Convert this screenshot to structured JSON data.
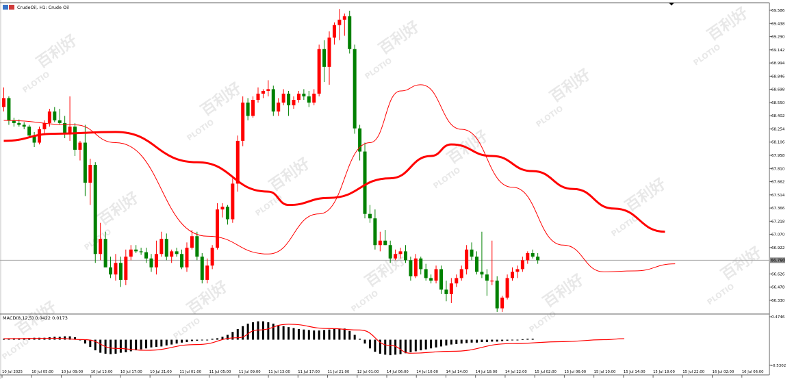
{
  "header": {
    "title": "CrudeOil, H1: Crude Oil"
  },
  "watermark": {
    "brand": "PLOTIO",
    "cjk": "百利好"
  },
  "colors": {
    "bull": "#ff0000",
    "bear": "#008000",
    "ma_fast": "#ff0000",
    "ma_slow": "#ff0000",
    "price_line": "#a0a0a0",
    "macd_signal": "#ff0000",
    "macd_hist": "#000000"
  },
  "chart_data": [
    {
      "type": "candlestick",
      "title": "CrudeOil, H1: Crude Oil",
      "ylim": [
        66.18,
        69.61
      ],
      "y_ticks": [
        "69.586",
        "69.438",
        "69.290",
        "69.142",
        "68.994",
        "68.846",
        "68.698",
        "68.550",
        "68.402",
        "68.254",
        "68.106",
        "67.958",
        "67.810",
        "67.662",
        "67.514",
        "67.366",
        "67.218",
        "67.070",
        "66.922",
        "66.626",
        "66.478",
        "66.330"
      ],
      "current_price": "66.780",
      "x_ticks": [
        "10 Jul 2025",
        "10 Jul 05:00",
        "10 Jul 09:00",
        "10 Jul 13:00",
        "10 Jul 17:00",
        "10 Jul 21:00",
        "11 Jul 01:00",
        "11 Jul 05:00",
        "11 Jul 09:00",
        "11 Jul 13:00",
        "11 Jul 17:00",
        "11 Jul 21:00",
        "12 Jul 01:00",
        "14 Jul 06:00",
        "14 Jul 10:00",
        "14 Jul 14:00",
        "14 Jul 18:00",
        "14 Jul 22:00",
        "15 Jul 02:00",
        "15 Jul 06:00",
        "15 Jul 10:00",
        "15 Jul 14:00",
        "15 Jul 18:00",
        "15 Jul 22:00",
        "16 Jul 02:00",
        "16 Jul 06:00"
      ],
      "candles": [
        [
          68.5,
          68.72,
          68.45,
          68.6
        ],
        [
          68.6,
          68.62,
          68.3,
          68.35
        ],
        [
          68.35,
          68.38,
          68.28,
          68.32
        ],
        [
          68.32,
          68.36,
          68.28,
          68.3
        ],
        [
          68.3,
          68.33,
          68.25,
          68.28
        ],
        [
          68.28,
          68.3,
          68.15,
          68.18
        ],
        [
          68.18,
          68.22,
          68.05,
          68.1
        ],
        [
          68.1,
          68.28,
          68.08,
          68.25
        ],
        [
          68.25,
          68.35,
          68.2,
          68.32
        ],
        [
          68.32,
          68.48,
          68.28,
          68.45
        ],
        [
          68.45,
          68.5,
          68.33,
          68.35
        ],
        [
          68.35,
          68.48,
          68.3,
          68.32
        ],
        [
          68.32,
          68.4,
          68.15,
          68.2
        ],
        [
          68.2,
          68.62,
          68.12,
          68.28
        ],
        [
          68.28,
          68.32,
          67.95,
          68.02
        ],
        [
          68.02,
          68.12,
          67.9,
          68.1
        ],
        [
          68.1,
          68.3,
          67.5,
          67.65
        ],
        [
          67.65,
          67.92,
          67.4,
          67.85
        ],
        [
          67.85,
          67.88,
          66.75,
          66.85
        ],
        [
          66.85,
          67.2,
          66.78,
          67.02
        ],
        [
          67.02,
          67.1,
          66.72,
          66.7
        ],
        [
          66.7,
          66.82,
          66.58,
          66.62
        ],
        [
          66.62,
          66.85,
          66.55,
          66.75
        ],
        [
          66.75,
          66.82,
          66.48,
          66.56
        ],
        [
          66.56,
          66.9,
          66.5,
          66.82
        ],
        [
          66.82,
          66.95,
          66.78,
          66.9
        ],
        [
          66.9,
          66.95,
          66.86,
          66.88
        ],
        [
          66.88,
          66.92,
          66.84,
          66.87
        ],
        [
          66.87,
          66.92,
          66.75,
          66.8
        ],
        [
          66.8,
          66.85,
          66.65,
          66.7
        ],
        [
          66.7,
          67.0,
          66.62,
          66.85
        ],
        [
          66.85,
          67.1,
          66.82,
          67.02
        ],
        [
          67.02,
          67.08,
          66.78,
          66.82
        ],
        [
          66.82,
          66.9,
          66.75,
          66.88
        ],
        [
          66.88,
          66.92,
          66.82,
          66.85
        ],
        [
          66.85,
          66.9,
          66.68,
          66.7
        ],
        [
          66.7,
          66.98,
          66.65,
          66.92
        ],
        [
          66.92,
          67.12,
          66.9,
          67.05
        ],
        [
          67.05,
          67.1,
          66.78,
          66.82
        ],
        [
          66.82,
          66.86,
          66.52,
          66.56
        ],
        [
          66.56,
          66.8,
          66.52,
          66.72
        ],
        [
          66.72,
          66.95,
          66.68,
          66.92
        ],
        [
          66.92,
          67.42,
          66.9,
          67.35
        ],
        [
          67.35,
          67.42,
          67.26,
          67.38
        ],
        [
          67.38,
          67.4,
          67.18,
          67.24
        ],
        [
          67.24,
          67.7,
          67.2,
          67.64
        ],
        [
          67.64,
          68.18,
          67.55,
          68.12
        ],
        [
          68.12,
          68.62,
          68.06,
          68.55
        ],
        [
          68.55,
          68.6,
          68.35,
          68.4
        ],
        [
          68.4,
          68.62,
          68.38,
          68.58
        ],
        [
          68.58,
          68.72,
          68.55,
          68.65
        ],
        [
          68.65,
          68.7,
          68.6,
          68.68
        ],
        [
          68.68,
          68.8,
          68.62,
          68.7
        ],
        [
          68.7,
          68.74,
          68.4,
          68.45
        ],
        [
          68.45,
          68.6,
          68.4,
          68.55
        ],
        [
          68.55,
          68.7,
          68.52,
          68.65
        ],
        [
          68.65,
          68.68,
          68.4,
          68.52
        ],
        [
          68.52,
          68.62,
          68.48,
          68.58
        ],
        [
          68.58,
          68.68,
          68.55,
          68.65
        ],
        [
          68.65,
          68.7,
          68.58,
          68.62
        ],
        [
          68.62,
          68.68,
          68.5,
          68.55
        ],
        [
          68.55,
          68.7,
          68.52,
          68.65
        ],
        [
          68.65,
          69.2,
          68.62,
          69.15
        ],
        [
          69.15,
          69.25,
          68.78,
          68.95
        ],
        [
          68.95,
          69.35,
          68.75,
          69.28
        ],
        [
          69.28,
          69.45,
          69.2,
          69.42
        ],
        [
          69.42,
          69.6,
          69.25,
          69.48
        ],
        [
          69.48,
          69.55,
          69.3,
          69.52
        ],
        [
          69.52,
          69.58,
          69.1,
          69.15
        ],
        [
          69.15,
          69.2,
          68.2,
          68.26
        ],
        [
          68.26,
          68.3,
          67.9,
          68.0
        ],
        [
          68.0,
          68.1,
          67.25,
          67.3
        ],
        [
          67.3,
          67.4,
          67.2,
          67.25
        ],
        [
          67.25,
          67.35,
          66.9,
          66.95
        ],
        [
          66.95,
          67.1,
          66.88,
          67.0
        ],
        [
          67.0,
          67.12,
          66.95,
          66.95
        ],
        [
          66.95,
          67.0,
          66.75,
          66.8
        ],
        [
          66.8,
          66.9,
          66.78,
          66.85
        ],
        [
          66.85,
          66.92,
          66.8,
          66.88
        ],
        [
          66.88,
          66.95,
          66.75,
          66.78
        ],
        [
          66.78,
          66.82,
          66.55,
          66.6
        ],
        [
          66.6,
          66.85,
          66.58,
          66.8
        ],
        [
          66.8,
          66.82,
          66.62,
          66.68
        ],
        [
          66.68,
          66.74,
          66.55,
          66.58
        ],
        [
          66.58,
          66.62,
          66.52,
          66.55
        ],
        [
          66.55,
          66.72,
          66.52,
          66.68
        ],
        [
          66.68,
          66.72,
          66.4,
          66.45
        ],
        [
          66.45,
          66.55,
          66.32,
          66.4
        ],
        [
          66.4,
          66.58,
          66.3,
          66.52
        ],
        [
          66.52,
          66.62,
          66.48,
          66.58
        ],
        [
          66.58,
          66.72,
          66.55,
          66.68
        ],
        [
          66.68,
          66.95,
          66.62,
          66.9
        ],
        [
          66.9,
          66.98,
          66.78,
          66.82
        ],
        [
          66.82,
          66.88,
          66.62,
          66.65
        ],
        [
          66.65,
          67.1,
          66.58,
          66.62
        ],
        [
          66.62,
          66.68,
          66.38,
          66.55
        ],
        [
          66.55,
          67.0,
          66.5,
          66.55
        ],
        [
          66.55,
          66.6,
          66.2,
          66.24
        ],
        [
          66.24,
          66.38,
          66.2,
          66.36
        ],
        [
          66.36,
          66.62,
          66.34,
          66.58
        ],
        [
          66.58,
          66.7,
          66.55,
          66.65
        ],
        [
          66.65,
          66.72,
          66.58,
          66.68
        ],
        [
          66.68,
          66.82,
          66.65,
          66.78
        ],
        [
          66.78,
          66.88,
          66.74,
          66.86
        ],
        [
          66.86,
          66.9,
          66.8,
          66.82
        ],
        [
          66.82,
          66.86,
          66.74,
          66.78
        ]
      ],
      "ma_fast": [
        [
          0,
          68.35
        ],
        [
          14,
          68.3
        ],
        [
          22,
          68.1
        ],
        [
          40,
          67.05
        ],
        [
          52,
          66.85
        ],
        [
          62,
          67.3
        ],
        [
          72,
          68.1
        ],
        [
          78,
          68.68
        ],
        [
          82,
          68.75
        ],
        [
          90,
          68.25
        ],
        [
          100,
          67.6
        ],
        [
          110,
          66.95
        ],
        [
          118,
          66.65
        ],
        [
          124,
          66.66
        ],
        [
          132,
          66.74
        ]
      ],
      "ma_slow": [
        [
          0,
          68.12
        ],
        [
          10,
          68.2
        ],
        [
          22,
          68.22
        ],
        [
          38,
          67.88
        ],
        [
          52,
          67.55
        ],
        [
          56,
          67.4
        ],
        [
          64,
          67.48
        ],
        [
          76,
          67.7
        ],
        [
          84,
          67.95
        ],
        [
          88,
          68.08
        ],
        [
          96,
          67.95
        ],
        [
          104,
          67.78
        ],
        [
          112,
          67.58
        ],
        [
          120,
          67.36
        ],
        [
          130,
          67.1
        ]
      ]
    },
    {
      "type": "bar",
      "title": "MACD(8,12,5) 0.0422 0.0173",
      "ylim": [
        -0.5302,
        0.4746
      ],
      "y_ticks": [
        "0.4746",
        "-0.5302"
      ],
      "histogram": [
        0.02,
        0.02,
        0.03,
        0.02,
        0.03,
        0.03,
        0.04,
        0.04,
        0.04,
        0.05,
        0.06,
        0.06,
        0.07,
        0.07,
        0.05,
        0.0,
        -0.08,
        -0.15,
        -0.22,
        -0.27,
        -0.29,
        -0.3,
        -0.29,
        -0.27,
        -0.26,
        -0.24,
        -0.22,
        -0.2,
        -0.18,
        -0.16,
        -0.15,
        -0.14,
        -0.12,
        -0.1,
        -0.08,
        -0.06,
        -0.05,
        -0.03,
        -0.02,
        -0.01,
        0.0,
        0.02,
        0.03,
        0.06,
        0.1,
        0.16,
        0.22,
        0.28,
        0.33,
        0.36,
        0.38,
        0.38,
        0.36,
        0.33,
        0.3,
        0.28,
        0.26,
        0.24,
        0.22,
        0.21,
        0.2,
        0.19,
        0.19,
        0.2,
        0.21,
        0.22,
        0.23,
        0.23,
        0.18,
        0.1,
        0.02,
        -0.08,
        -0.18,
        -0.25,
        -0.29,
        -0.31,
        -0.32,
        -0.31,
        -0.3,
        -0.28,
        -0.26,
        -0.24,
        -0.22,
        -0.2,
        -0.18,
        -0.16,
        -0.14,
        -0.12,
        -0.1,
        -0.09,
        -0.08,
        -0.07,
        -0.06,
        -0.06,
        -0.05,
        -0.05,
        -0.04,
        -0.04,
        -0.03,
        -0.02,
        -0.01,
        0.0,
        0.01,
        0.02,
        0.02
      ],
      "signal": [
        [
          0,
          0.02
        ],
        [
          10,
          0.03
        ],
        [
          16,
          0.0
        ],
        [
          22,
          -0.18
        ],
        [
          28,
          -0.22
        ],
        [
          38,
          -0.1
        ],
        [
          46,
          0.04
        ],
        [
          50,
          0.2
        ],
        [
          56,
          0.32
        ],
        [
          64,
          0.23
        ],
        [
          70,
          0.2
        ],
        [
          76,
          -0.12
        ],
        [
          80,
          -0.28
        ],
        [
          88,
          -0.24
        ],
        [
          100,
          -0.08
        ],
        [
          110,
          -0.04
        ],
        [
          118,
          0.0
        ],
        [
          122,
          0.02
        ]
      ]
    }
  ]
}
